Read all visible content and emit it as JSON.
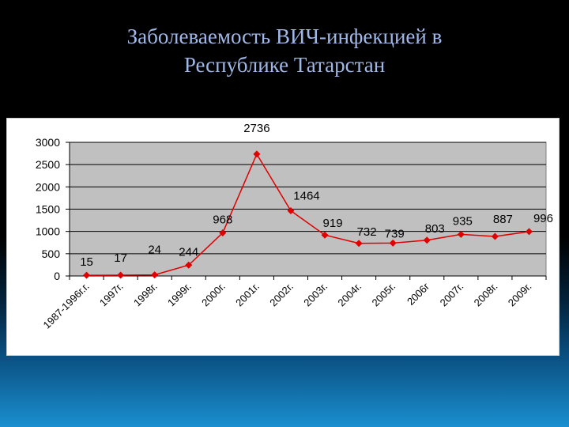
{
  "slide": {
    "title_line1": "Заболеваемость ВИЧ-инфекцией в",
    "title_line2": "Республике Татарстан"
  },
  "chart_data": {
    "type": "line",
    "title": "Заболеваемость ВИЧ-инфекцией в Республике Татарстан",
    "xlabel": "",
    "ylabel": "",
    "categories": [
      "1987-1996г.г.",
      "1997г.",
      "1998г.",
      "1999г.",
      "2000г.",
      "2001г.",
      "2002г.",
      "2003г.",
      "2004г.",
      "2005г.",
      "2006г",
      "2007г.",
      "2008г.",
      "2009г."
    ],
    "values": [
      15,
      17,
      24,
      244,
      968,
      2736,
      1464,
      919,
      732,
      739,
      803,
      935,
      887,
      996
    ],
    "ylim": [
      0,
      3000
    ],
    "yticks": [
      0,
      500,
      1000,
      1500,
      2000,
      2500,
      3000
    ],
    "grid": true,
    "legend": "none",
    "colors": {
      "line": "#e00000",
      "plot_background": "#c0c0c0",
      "grid": "#000000"
    }
  }
}
